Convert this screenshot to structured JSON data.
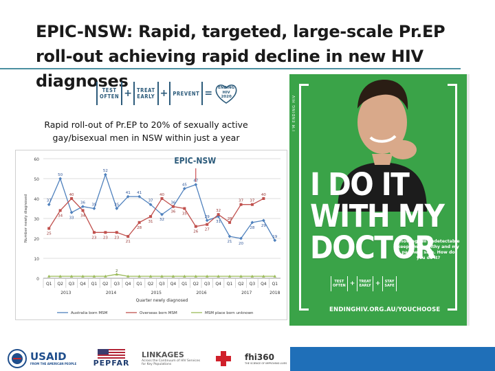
{
  "slide": {
    "title": "EPIC-NSW: Rapid, targeted, large-scale Pr.EP roll-out achieving rapid decline in new HIV diagnoses",
    "subtitle": "Rapid roll-out of Pr.EP to 20% of sexually active gay/bisexual men in NSW within just a year"
  },
  "formula": {
    "box1": "TEST\nOFTEN",
    "box2": "TREAT\nEARLY",
    "box3": "PREVENT",
    "heart": "ENDING\nHIV\n2020"
  },
  "chart_data": {
    "type": "line",
    "callout": "EPIC-NSW",
    "xlabel": "Quarter newly diagnosed",
    "ylabel": "Number newly diagnosed",
    "ylim": [
      0,
      60
    ],
    "yticks": [
      0,
      10,
      20,
      30,
      40,
      50,
      60
    ],
    "categories": [
      "Q1",
      "Q2",
      "Q3",
      "Q4",
      "Q1",
      "Q2",
      "Q3",
      "Q4",
      "Q1",
      "Q2",
      "Q3",
      "Q4",
      "Q1",
      "Q2",
      "Q3",
      "Q4",
      "Q1",
      "Q2",
      "Q3",
      "Q4",
      "Q1"
    ],
    "years": [
      {
        "label": "2013",
        "span": [
          0,
          3
        ]
      },
      {
        "label": "2014",
        "span": [
          4,
          7
        ]
      },
      {
        "label": "2015",
        "span": [
          8,
          11
        ]
      },
      {
        "label": "2016",
        "span": [
          12,
          15
        ]
      },
      {
        "label": "2017",
        "span": [
          16,
          19
        ]
      },
      {
        "label": "2018",
        "span": [
          20,
          20
        ]
      }
    ],
    "series": [
      {
        "name": "Australia born MSM",
        "color": "#4f81bd",
        "values": [
          37,
          50,
          33,
          36,
          35,
          52,
          35,
          41,
          41,
          37,
          32,
          36,
          45,
          47,
          29,
          31,
          21,
          20,
          28,
          29,
          19
        ]
      },
      {
        "name": "Overseas born MSM",
        "color": "#c0504d",
        "values": [
          25,
          34,
          40,
          34,
          23,
          23,
          23,
          21,
          28,
          31,
          40,
          36,
          35,
          26,
          27,
          32,
          28,
          37,
          37,
          40,
          null
        ]
      },
      {
        "name": "MSM place born unknown",
        "color": "#9bbb59",
        "values": [
          1,
          1,
          1,
          1,
          1,
          1,
          2,
          1,
          1,
          1,
          1,
          1,
          1,
          1,
          1,
          1,
          1,
          1,
          1,
          1,
          1
        ]
      }
    ],
    "labels_au": [
      "37",
      "50",
      "33",
      "36",
      "35",
      "52",
      "35",
      "41",
      "41",
      "37",
      "32",
      "36",
      "45",
      "47",
      "29",
      "31",
      "21",
      "20",
      "28",
      "29",
      "19"
    ],
    "labels_os": [
      "25",
      "34",
      "40",
      "34",
      "23",
      "23",
      "23",
      "21",
      "28",
      "31",
      "40",
      "36",
      "35",
      "26",
      "27",
      "32",
      "28",
      "37",
      "37",
      "40"
    ],
    "label_unk": "2",
    "grid": true,
    "legend_position": "bottom"
  },
  "poster": {
    "vertical_text": "I'M ENDING HIV",
    "headline": "I DO IT WITH MY DOCTOR",
    "tagline": "Knowing I'm undetectable keeps me healthy and my partners safe. How do you do it?",
    "box1": "TEST\nOFTEN",
    "box2": "TREAT\nEARLY",
    "box3": "STAY\nSAFE",
    "url": "ENDINGHIV.ORG.AU/YOUCHOOSE"
  },
  "footer": {
    "usaid": "USAID",
    "usaid_sub": "FROM THE AMERICAN PEOPLE",
    "pepfar": "PEPFAR",
    "linkages": "LINKAGES",
    "linkages_sub": "Across the Continuum of HIV Services for Key Populations",
    "fhi": "fhi360",
    "fhi_sub": "THE SCIENCE OF IMPROVING LIVES"
  },
  "colors": {
    "title_rule": "#4a8fa0",
    "poster_green": "#3aa348",
    "footer_blue": "#1f6fb8"
  }
}
